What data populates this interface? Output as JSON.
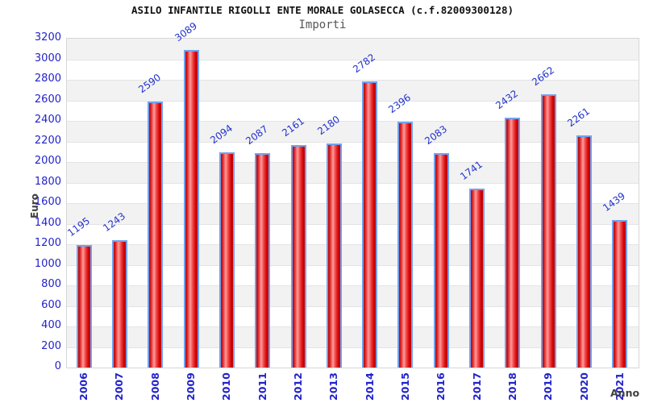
{
  "chart_data": {
    "type": "bar",
    "title": "ASILO INFANTILE RIGOLLI ENTE MORALE GOLASECCA (c.f.82009300128)",
    "subtitle": "Importi",
    "xlabel": "Anno",
    "ylabel": "Euro",
    "categories": [
      "2006",
      "2007",
      "2008",
      "2009",
      "2010",
      "2011",
      "2012",
      "2013",
      "2014",
      "2015",
      "2016",
      "2017",
      "2018",
      "2019",
      "2020",
      "2021"
    ],
    "values": [
      1195,
      1243,
      2590,
      3089,
      2094,
      2087,
      2161,
      2180,
      2782,
      2396,
      2083,
      1741,
      2432,
      2662,
      2261,
      1439
    ],
    "ylim": [
      0,
      3200
    ],
    "ytick_step": 200,
    "ytick_labels": [
      "0",
      "200",
      "400",
      "600",
      "800",
      "1000",
      "1200",
      "1400",
      "1600",
      "1800",
      "2000",
      "2200",
      "2400",
      "2600",
      "2800",
      "3000",
      "3200"
    ],
    "grid": true,
    "legend_position": "none",
    "colors": {
      "bar_fill_dark": "#c00000",
      "bar_fill_highlight": "#ff9c9c",
      "bar_border": "#72a1ef",
      "axis_tick_label": "#2222cc",
      "value_label": "#2233cc",
      "band_gray": "#f2f2f2",
      "band_white": "#ffffff",
      "grid_line": "#e4e4e4",
      "title_color": "#111111",
      "subtitle_color": "#555555",
      "axis_title_color": "#404040"
    }
  }
}
